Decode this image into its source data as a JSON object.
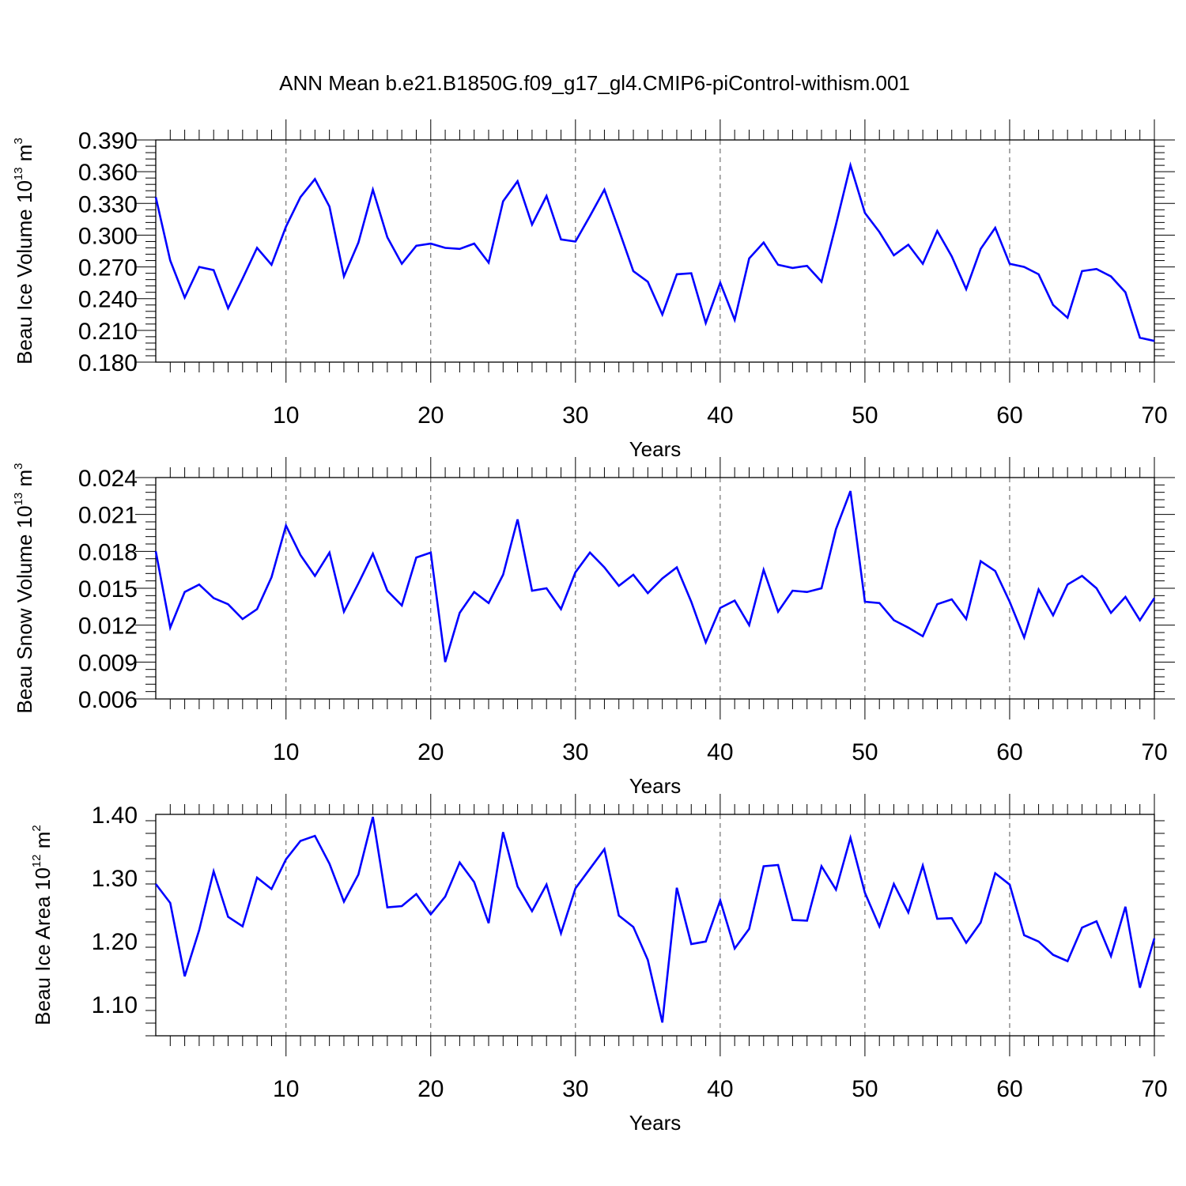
{
  "figure": {
    "title": "ANN Mean b.e21.B1850G.f09_g17_gl4.CMIP6-piControl-withism.001"
  },
  "chart_data": [
    {
      "type": "line",
      "title": "",
      "xlabel": "Years",
      "ylabel": "Beau Ice Volume 10",
      "ylabel_exp": "13",
      "ylabel_unit": " m",
      "ylabel_unit_exp": "3",
      "xlim": [
        1,
        70
      ],
      "ylim": [
        0.18,
        0.39
      ],
      "x_ticks": [
        "10",
        "20",
        "30",
        "40",
        "50",
        "60",
        "70"
      ],
      "y_ticks": [
        "0.180",
        "0.210",
        "0.240",
        "0.270",
        "0.300",
        "0.330",
        "0.360",
        "0.390"
      ],
      "grid": "vertical dashed at major x ticks",
      "color": "#0000ff",
      "series": [
        {
          "x": [
            1,
            2,
            3,
            4,
            5,
            6,
            7,
            8,
            9,
            10,
            11,
            12,
            13,
            14,
            15,
            16,
            17,
            18,
            19,
            20,
            21,
            22,
            23,
            24,
            25,
            26,
            27,
            28,
            29,
            30,
            31,
            32,
            33,
            34,
            35,
            36,
            37,
            38,
            39,
            40,
            41,
            42,
            43,
            44,
            45,
            46,
            47,
            48,
            49,
            50,
            51,
            52,
            53,
            54,
            55,
            56,
            57,
            58,
            59,
            60,
            61,
            62,
            63,
            64,
            65,
            66,
            67,
            68,
            69,
            70
          ],
          "values": [
            0.336,
            0.276,
            0.241,
            0.27,
            0.267,
            0.231,
            0.259,
            0.288,
            0.272,
            0.308,
            0.336,
            0.353,
            0.327,
            0.261,
            0.293,
            0.343,
            0.298,
            0.273,
            0.29,
            0.292,
            0.288,
            0.287,
            0.292,
            0.274,
            0.332,
            0.351,
            0.31,
            0.337,
            0.296,
            0.294,
            0.318,
            0.343,
            0.305,
            0.266,
            0.256,
            0.225,
            0.263,
            0.264,
            0.217,
            0.255,
            0.22,
            0.278,
            0.293,
            0.272,
            0.269,
            0.271,
            0.256,
            0.31,
            0.366,
            0.321,
            0.303,
            0.281,
            0.291,
            0.273,
            0.304,
            0.28,
            0.249,
            0.287,
            0.307,
            0.273,
            0.27,
            0.263,
            0.234,
            0.222,
            0.266,
            0.268,
            0.261,
            0.246,
            0.203,
            0.2
          ]
        }
      ]
    },
    {
      "type": "line",
      "title": "",
      "xlabel": "Years",
      "ylabel": "Beau Snow Volume 10",
      "ylabel_exp": "13",
      "ylabel_unit": " m",
      "ylabel_unit_exp": "3",
      "xlim": [
        1,
        70
      ],
      "ylim": [
        0.006,
        0.024
      ],
      "x_ticks": [
        "10",
        "20",
        "30",
        "40",
        "50",
        "60",
        "70"
      ],
      "y_ticks": [
        "0.006",
        "0.009",
        "0.012",
        "0.015",
        "0.018",
        "0.021",
        "0.024"
      ],
      "grid": "vertical dashed at major x ticks",
      "color": "#0000ff",
      "series": [
        {
          "x": [
            1,
            2,
            3,
            4,
            5,
            6,
            7,
            8,
            9,
            10,
            11,
            12,
            13,
            14,
            15,
            16,
            17,
            18,
            19,
            20,
            21,
            22,
            23,
            24,
            25,
            26,
            27,
            28,
            29,
            30,
            31,
            32,
            33,
            34,
            35,
            36,
            37,
            38,
            39,
            40,
            41,
            42,
            43,
            44,
            45,
            46,
            47,
            48,
            49,
            50,
            51,
            52,
            53,
            54,
            55,
            56,
            57,
            58,
            59,
            60,
            61,
            62,
            63,
            64,
            65,
            66,
            67,
            68,
            69,
            70
          ],
          "values": [
            0.018,
            0.0118,
            0.0147,
            0.0153,
            0.0142,
            0.0137,
            0.0125,
            0.0133,
            0.0159,
            0.0201,
            0.0177,
            0.016,
            0.0179,
            0.0131,
            0.0154,
            0.0178,
            0.0148,
            0.0136,
            0.0175,
            0.0179,
            0.009,
            0.013,
            0.0147,
            0.0138,
            0.0161,
            0.0206,
            0.0148,
            0.015,
            0.0133,
            0.0163,
            0.0179,
            0.0167,
            0.0152,
            0.0161,
            0.0146,
            0.0158,
            0.0167,
            0.0139,
            0.0106,
            0.0134,
            0.014,
            0.012,
            0.0165,
            0.0131,
            0.0148,
            0.0147,
            0.015,
            0.0198,
            0.0229,
            0.0139,
            0.0138,
            0.0124,
            0.0118,
            0.0111,
            0.0137,
            0.0141,
            0.0125,
            0.0172,
            0.0164,
            0.0139,
            0.011,
            0.0149,
            0.0128,
            0.0153,
            0.016,
            0.015,
            0.013,
            0.0143,
            0.0124,
            0.0142
          ]
        }
      ]
    },
    {
      "type": "line",
      "title": "",
      "xlabel": "Years",
      "ylabel": "Beau Ice Area 10",
      "ylabel_exp": "12",
      "ylabel_unit": " m",
      "ylabel_unit_exp": "2",
      "xlim": [
        1,
        70
      ],
      "ylim": [
        1.05,
        1.4
      ],
      "x_ticks": [
        "10",
        "20",
        "30",
        "40",
        "50",
        "60",
        "70"
      ],
      "y_ticks": [
        "1.10",
        "1.20",
        "1.30",
        "1.40"
      ],
      "grid": "vertical dashed at major x ticks",
      "color": "#0000ff",
      "series": [
        {
          "x": [
            1,
            2,
            3,
            4,
            5,
            6,
            7,
            8,
            9,
            10,
            11,
            12,
            13,
            14,
            15,
            16,
            17,
            18,
            19,
            20,
            21,
            22,
            23,
            24,
            25,
            26,
            27,
            28,
            29,
            30,
            31,
            32,
            33,
            34,
            35,
            36,
            37,
            38,
            39,
            40,
            41,
            42,
            43,
            44,
            45,
            46,
            47,
            48,
            49,
            50,
            51,
            52,
            53,
            54,
            55,
            56,
            57,
            58,
            59,
            60,
            61,
            62,
            63,
            64,
            65,
            66,
            67,
            68,
            69,
            70
          ],
          "values": [
            1.29,
            1.26,
            1.144,
            1.217,
            1.31,
            1.238,
            1.223,
            1.3,
            1.282,
            1.329,
            1.358,
            1.366,
            1.322,
            1.262,
            1.305,
            1.396,
            1.253,
            1.255,
            1.274,
            1.242,
            1.27,
            1.324,
            1.293,
            1.228,
            1.372,
            1.286,
            1.247,
            1.289,
            1.212,
            1.283,
            1.314,
            1.345,
            1.24,
            1.222,
            1.17,
            1.071,
            1.284,
            1.195,
            1.199,
            1.264,
            1.188,
            1.219,
            1.318,
            1.32,
            1.233,
            1.232,
            1.318,
            1.281,
            1.363,
            1.276,
            1.223,
            1.29,
            1.245,
            1.319,
            1.235,
            1.236,
            1.197,
            1.229,
            1.307,
            1.289,
            1.209,
            1.199,
            1.178,
            1.168,
            1.221,
            1.231,
            1.176,
            1.254,
            1.126,
            1.204
          ]
        }
      ]
    }
  ]
}
